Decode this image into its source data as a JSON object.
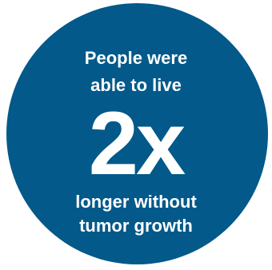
{
  "badge": {
    "line1": "People were",
    "line2": "able to live",
    "highlight": "2x",
    "line3": "longer without",
    "line4": "tumor growth",
    "background_color": "#02598a",
    "text_color": "#ffffff"
  }
}
